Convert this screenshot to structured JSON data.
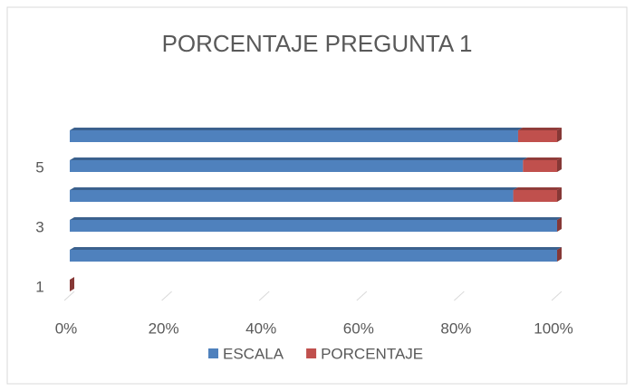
{
  "chart_data": {
    "type": "bar3d",
    "title": "PORCENTAJE PREGUNTA 1",
    "categories": [
      "1",
      null,
      "3",
      null,
      "5",
      null
    ],
    "series": [
      {
        "name": "ESCALA",
        "color": "#4f81bd",
        "values": [
          0,
          100,
          100,
          91,
          93,
          92
        ]
      },
      {
        "name": "PORCENTAJE",
        "color": "#c0504d",
        "values": [
          0,
          0,
          0,
          9,
          7,
          8
        ]
      }
    ],
    "xlim": [
      0,
      100
    ],
    "xticks": [
      {
        "value": 0,
        "label": "0%"
      },
      {
        "value": 20,
        "label": "20%"
      },
      {
        "value": 40,
        "label": "40%"
      },
      {
        "value": 60,
        "label": "60%"
      },
      {
        "value": 80,
        "label": "80%"
      },
      {
        "value": 100,
        "label": "100%"
      }
    ],
    "grid": true,
    "legend": "bottom"
  }
}
